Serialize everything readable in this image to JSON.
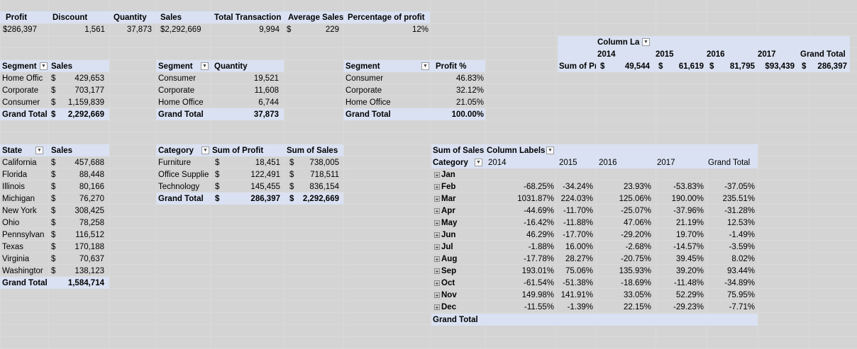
{
  "summary": {
    "headers": [
      "Profit",
      "Discount",
      "Quantity",
      "Sales",
      "Total Transaction",
      "Average Sales",
      "Percentage of profit"
    ],
    "values": [
      "$286,397",
      "1,561",
      "37,873",
      "$2,292,669",
      "9,994",
      "$",
      "229",
      "12%"
    ]
  },
  "segment_sales": {
    "h1": "Segment",
    "h2": "Sales",
    "rows": [
      [
        "Home Offic",
        "$",
        "429,653"
      ],
      [
        "Corporate",
        "$",
        "703,177"
      ],
      [
        "Consumer",
        "$",
        "1,159,839"
      ]
    ],
    "total": [
      "Grand Total",
      "$",
      "2,292,669"
    ]
  },
  "segment_qty": {
    "h1": "Segment",
    "h2": "Quantity",
    "rows": [
      [
        "Consumer",
        "19,521"
      ],
      [
        "Corporate",
        "11,608"
      ],
      [
        "Home Office",
        "6,744"
      ]
    ],
    "total": [
      "Grand Total",
      "37,873"
    ]
  },
  "segment_profit": {
    "h1": "Segment",
    "h2": "Profit %",
    "rows": [
      [
        "Consumer",
        "46.83%"
      ],
      [
        "Corporate",
        "32.12%"
      ],
      [
        "Home Office",
        "21.05%"
      ]
    ],
    "total": [
      "Grand Total",
      "100.00%"
    ]
  },
  "year_profit": {
    "col_label": "Column Lab",
    "years": [
      "2014",
      "2015",
      "2016",
      "2017",
      "Grand Total"
    ],
    "row_label": "Sum of Pr",
    "values": [
      [
        "$",
        "49,544"
      ],
      [
        "$",
        "61,619"
      ],
      [
        "$",
        "81,795"
      ],
      [
        "",
        "$93,439"
      ],
      [
        "$",
        "286,397"
      ]
    ]
  },
  "state_sales": {
    "h1": "State",
    "h2": "Sales",
    "rows": [
      [
        "California",
        "$",
        "457,688"
      ],
      [
        "Florida",
        "$",
        "88,448"
      ],
      [
        "Illinois",
        "$",
        "80,166"
      ],
      [
        "Michigan",
        "$",
        "76,270"
      ],
      [
        "New York",
        "$",
        "308,425"
      ],
      [
        "Ohio",
        "$",
        "78,258"
      ],
      [
        "Pennsylvan",
        "$",
        "116,512"
      ],
      [
        "Texas",
        "$",
        "170,188"
      ],
      [
        "Virginia",
        "$",
        "70,637"
      ],
      [
        "Washingtor",
        "$",
        "138,123"
      ]
    ],
    "total": [
      "Grand Total",
      "1,584,714"
    ]
  },
  "category": {
    "h1": "Category",
    "h2": "Sum of Profit",
    "h3": "Sum of Sales",
    "rows": [
      [
        "Furniture",
        "$",
        "18,451",
        "$",
        "738,005"
      ],
      [
        "Office Supplie",
        "$",
        "122,491",
        "$",
        "718,511"
      ],
      [
        "Technology",
        "$",
        "145,455",
        "$",
        "836,154"
      ]
    ],
    "total": [
      "Grand Total",
      "$",
      "286,397",
      "$",
      "2,292,669"
    ]
  },
  "monthly": {
    "title": "Sum of Sales",
    "col_label": "Column Labels",
    "row_label": "Category",
    "years": [
      "2014",
      "2015",
      "2016",
      "2017",
      "Grand Total"
    ],
    "rows": [
      [
        "Jan",
        "",
        "",
        "",
        "",
        ""
      ],
      [
        "Feb",
        "-68.25%",
        "-34.24%",
        "23.93%",
        "-53.83%",
        "-37.05%"
      ],
      [
        "Mar",
        "1031.87%",
        "224.03%",
        "125.06%",
        "190.00%",
        "235.51%"
      ],
      [
        "Apr",
        "-44.69%",
        "-11.70%",
        "-25.07%",
        "-37.96%",
        "-31.28%"
      ],
      [
        "May",
        "-16.42%",
        "-11.88%",
        "47.06%",
        "21.19%",
        "12.53%"
      ],
      [
        "Jun",
        "46.29%",
        "-17.70%",
        "-29.20%",
        "19.70%",
        "-1.49%"
      ],
      [
        "Jul",
        "-1.88%",
        "16.00%",
        "-2.68%",
        "-14.57%",
        "-3.59%"
      ],
      [
        "Aug",
        "-17.78%",
        "28.27%",
        "-20.75%",
        "39.45%",
        "8.02%"
      ],
      [
        "Sep",
        "193.01%",
        "75.06%",
        "135.93%",
        "39.20%",
        "93.44%"
      ],
      [
        "Oct",
        "-61.54%",
        "-51.38%",
        "-18.69%",
        "-11.48%",
        "-34.89%"
      ],
      [
        "Nov",
        "149.98%",
        "141.91%",
        "33.05%",
        "52.29%",
        "75.95%"
      ],
      [
        "Dec",
        "-11.55%",
        "-1.39%",
        "22.15%",
        "-29.23%",
        "-7.71%"
      ]
    ],
    "total": "Grand Total"
  }
}
